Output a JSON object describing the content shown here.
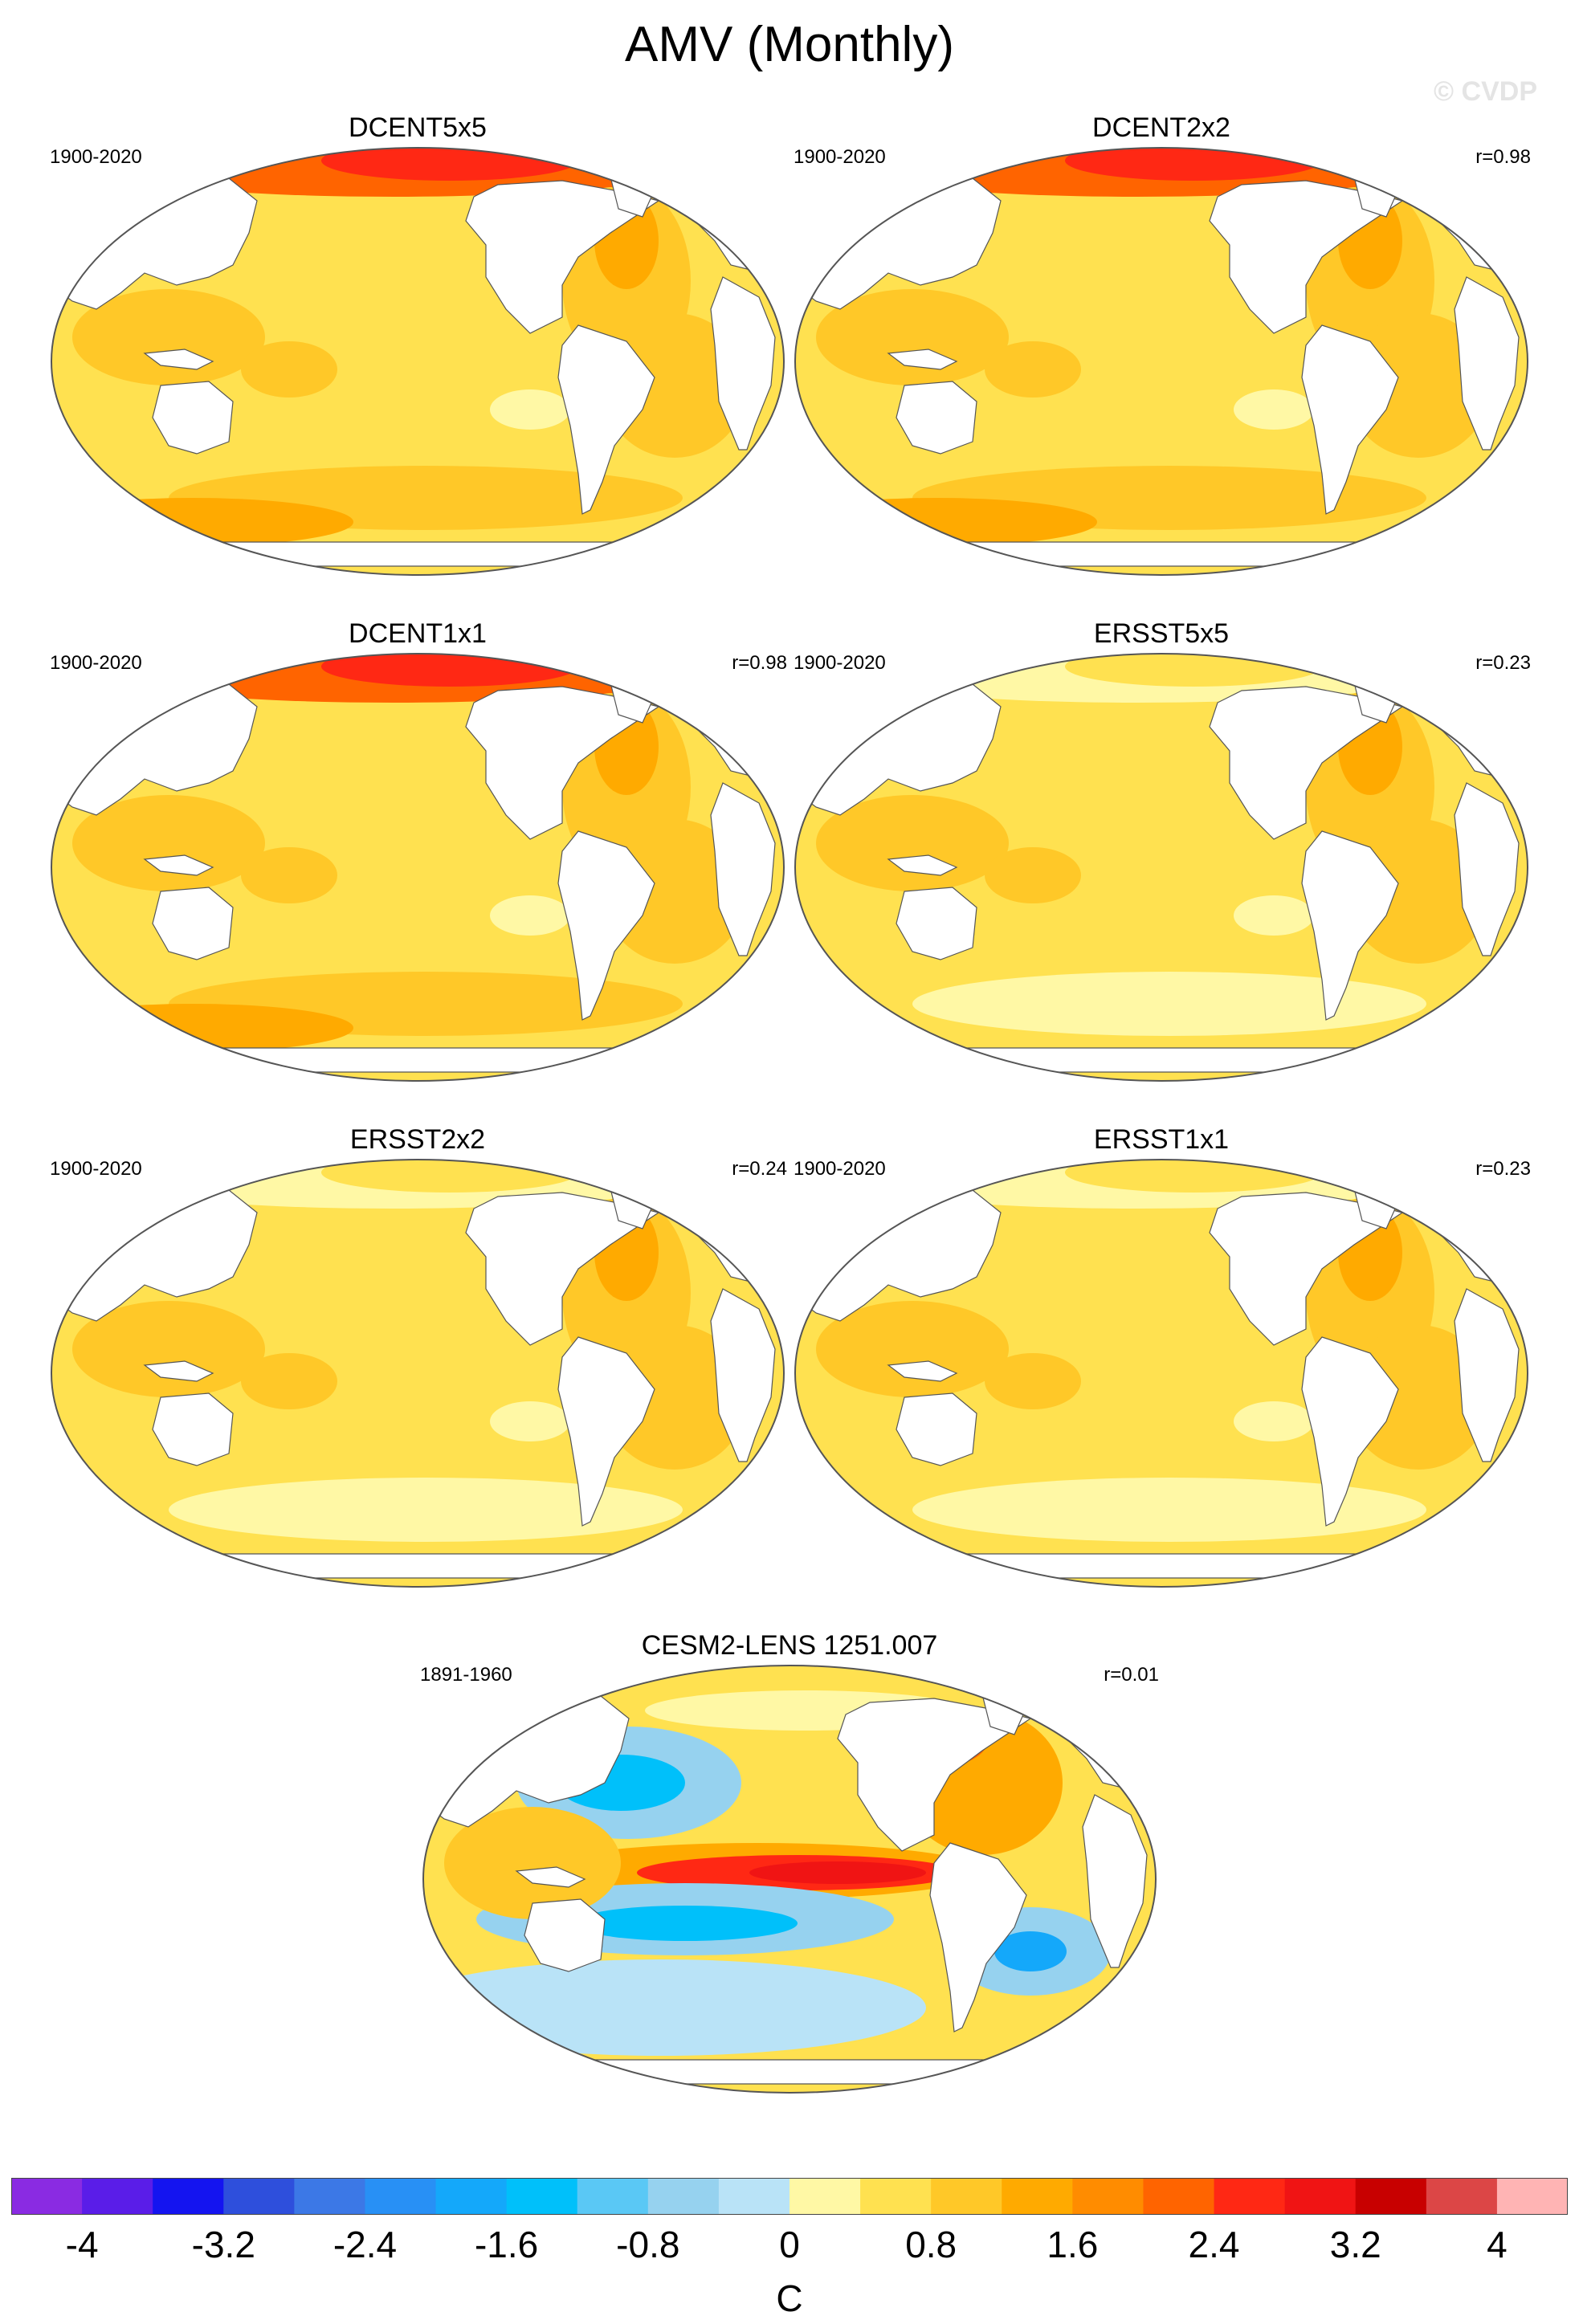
{
  "title": "AMV (Monthly)",
  "watermark": "© CVDP",
  "panels": [
    {
      "name": "DCENT5x5",
      "period": "1900-2020",
      "r": "",
      "variant": "obs-coarse"
    },
    {
      "name": "DCENT2x2",
      "period": "1900-2020",
      "r": "r=0.98",
      "variant": "obs"
    },
    {
      "name": "DCENT1x1",
      "period": "1900-2020",
      "r": "r=0.98",
      "variant": "obs"
    },
    {
      "name": "ERSST5x5",
      "period": "1900-2020",
      "r": "r=0.23",
      "variant": "ersst-coarse"
    },
    {
      "name": "ERSST2x2",
      "period": "1900-2020",
      "r": "r=0.24",
      "variant": "ersst"
    },
    {
      "name": "ERSST1x1",
      "period": "1900-2020",
      "r": "r=0.23",
      "variant": "ersst"
    },
    {
      "name": "CESM2-LENS 1251.007",
      "period": "1891-1960",
      "r": "r=0.01",
      "variant": "model"
    }
  ],
  "colorbar": {
    "unit": "C",
    "min": -4.4,
    "max": 4.4,
    "step": 0.4,
    "tick_labels": [
      "-4",
      "-3.2",
      "-2.4",
      "-1.6",
      "-0.8",
      "0",
      "0.8",
      "1.6",
      "2.4",
      "3.2",
      "4"
    ],
    "tick_values": [
      -4,
      -3.2,
      -2.4,
      -1.6,
      -0.8,
      0,
      0.8,
      1.6,
      2.4,
      3.2,
      4
    ],
    "colors": [
      "#8a2be2",
      "#5a1de8",
      "#1414f0",
      "#2e4fdc",
      "#3c78e6",
      "#2890f5",
      "#14a8fa",
      "#00c0fa",
      "#5ac8f5",
      "#96d2ef",
      "#b9e3f7",
      "#fff8a5",
      "#ffe150",
      "#ffc828",
      "#ffaa00",
      "#ff8c00",
      "#ff6400",
      "#ff2814",
      "#f01414",
      "#c80000",
      "#dc4646",
      "#ffb4b4"
    ]
  }
}
